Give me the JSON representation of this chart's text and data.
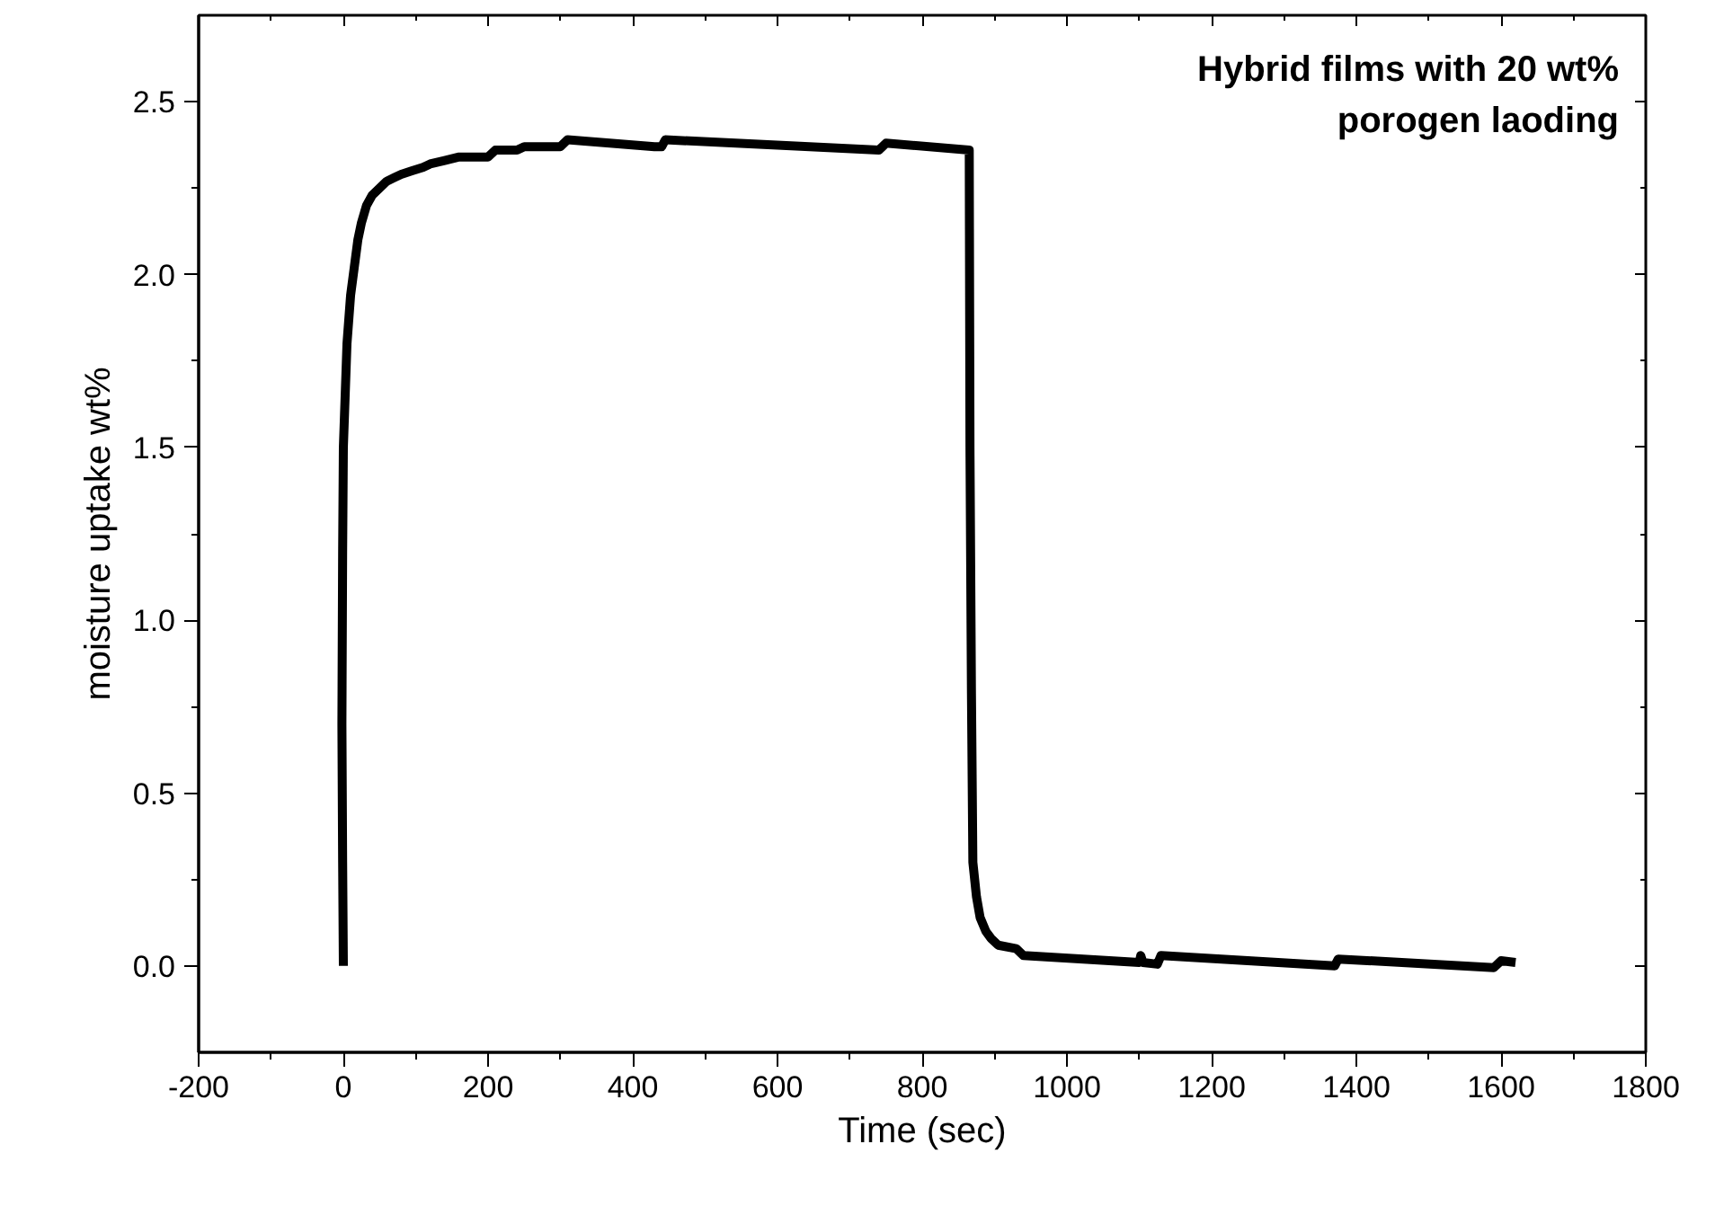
{
  "chart_data": {
    "type": "line",
    "xlabel": "Time (sec)",
    "ylabel": "moisture uptake wt%",
    "annotations": [
      "Hybrid films with 20 wt%\nporogen laoding"
    ],
    "series": [
      {
        "color": "#000000",
        "x": [
          0,
          -1,
          -2,
          -1,
          0,
          5,
          10,
          15,
          20,
          25,
          32,
          40,
          50,
          60,
          70,
          80,
          95,
          110,
          120,
          140,
          160,
          200,
          210,
          240,
          250,
          300,
          310,
          430,
          440,
          445,
          740,
          750,
          865,
          866,
          868,
          870,
          875,
          880,
          888,
          895,
          905,
          930,
          940,
          1100,
          1102,
          1105,
          1125,
          1130,
          1370,
          1375,
          1590,
          1600,
          1620
        ],
        "values": [
          0,
          0.3,
          0.7,
          1.2,
          1.5,
          1.8,
          1.94,
          2.02,
          2.1,
          2.15,
          2.2,
          2.23,
          2.25,
          2.27,
          2.28,
          2.29,
          2.3,
          2.31,
          2.32,
          2.33,
          2.34,
          2.34,
          2.36,
          2.36,
          2.37,
          2.37,
          2.39,
          2.37,
          2.37,
          2.39,
          2.36,
          2.38,
          2.36,
          1.5,
          0.8,
          0.3,
          0.2,
          0.14,
          0.1,
          0.08,
          0.06,
          0.05,
          0.03,
          0.01,
          0.03,
          0.01,
          0.005,
          0.03,
          0.0,
          0.02,
          -0.005,
          0.015,
          0.01
        ]
      }
    ],
    "xlim": [
      -200,
      1800
    ],
    "ylim": [
      -0.25,
      2.75
    ],
    "xticks": [
      -200,
      0,
      200,
      400,
      600,
      800,
      1000,
      1200,
      1400,
      1600,
      1800
    ],
    "yticks": [
      {
        "value": 0,
        "label": "0.0"
      },
      0.5,
      {
        "value": 1,
        "label": "1.0"
      },
      1.5,
      {
        "value": 2,
        "label": "2.0"
      },
      2.5
    ],
    "marker": "none",
    "line_style": "solid"
  }
}
